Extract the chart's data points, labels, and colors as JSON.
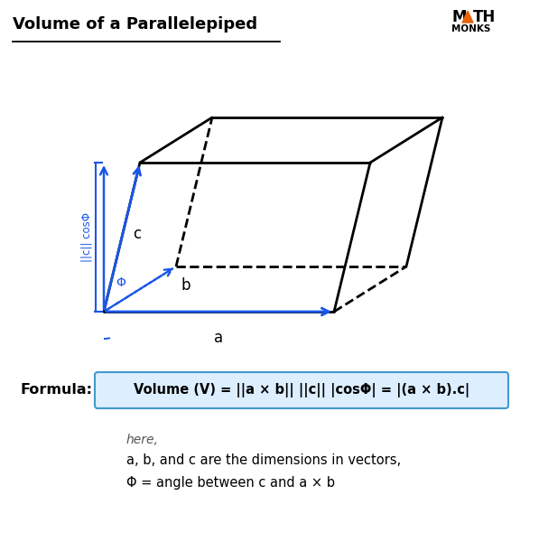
{
  "title": "Volume of a Parallelepiped",
  "bg_color": "#ffffff",
  "title_color": "#000000",
  "title_fontsize": 13,
  "diagram_color": "#000000",
  "blue_color": "#1a56e8",
  "formula_text": "Volume (V) = ||a × b|| ||c|| |cosΦ| = |(a × b).c|",
  "formula_label": "Formula:",
  "formula_box_facecolor": "#ddeeff",
  "formula_box_edgecolor": "#4499cc",
  "here_text": "here,",
  "line1_text": "a, b, and c are the dimensions in vectors,",
  "line2_text": "Φ = angle between c and a × b",
  "logo_triangle_color": "#e8620a"
}
